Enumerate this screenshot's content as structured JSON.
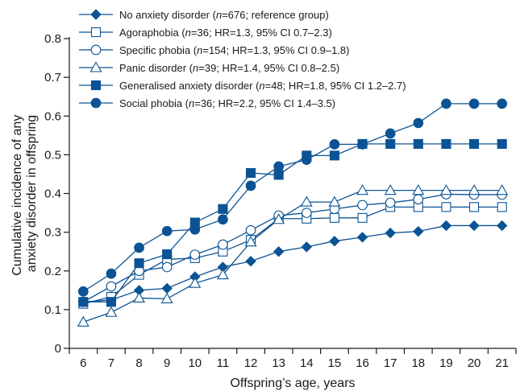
{
  "chart_data": {
    "type": "line",
    "xlabel": "Offspring’s age, years",
    "ylabel_lines": [
      "Cumulative incidence of any",
      "anxiety disorder in offspring"
    ],
    "categories": [
      6,
      7,
      8,
      9,
      10,
      11,
      12,
      13,
      14,
      15,
      16,
      17,
      18,
      19,
      20,
      21
    ],
    "ylim": [
      0,
      0.8
    ],
    "yticks": [
      "0",
      "0.1",
      "0.2",
      "0.3",
      "0.4",
      "0.5",
      "0.6",
      "0.7",
      "0.8"
    ],
    "grid": false,
    "legend_position": "top-left",
    "color": "#0b5394",
    "series": [
      {
        "marker": "filled-diamond",
        "legend": {
          "pre": "No anxiety disorder (",
          "n": "n",
          "post": "=676; reference group)"
        },
        "values": [
          0.12,
          0.125,
          0.15,
          0.155,
          0.185,
          0.21,
          0.225,
          0.25,
          0.262,
          0.277,
          0.287,
          0.298,
          0.302,
          0.317,
          0.317,
          0.317
        ]
      },
      {
        "marker": "open-square",
        "legend": {
          "pre": "Agoraphobia (",
          "n": "n",
          "post": "=36; HR=1.3, 95% CI 0.7–2.3)"
        },
        "values": [
          0.115,
          0.133,
          0.19,
          0.23,
          0.233,
          0.25,
          0.28,
          0.335,
          0.335,
          0.337,
          0.337,
          0.365,
          0.365,
          0.365,
          0.365,
          0.365
        ]
      },
      {
        "marker": "open-circle",
        "legend": {
          "pre": "Specific phobia (",
          "n": "n",
          "post": "=154; HR=1.3, 95% CI 0.9–1.8)"
        },
        "values": [
          0.12,
          0.16,
          0.2,
          0.21,
          0.242,
          0.268,
          0.305,
          0.343,
          0.35,
          0.36,
          0.37,
          0.376,
          0.385,
          0.398,
          0.397,
          0.397
        ]
      },
      {
        "marker": "open-triangle",
        "legend": {
          "pre": "Panic disorder (",
          "n": "n",
          "post": "=39; HR=1.4, 95% CI 0.8–2.5)"
        },
        "values": [
          0.068,
          0.093,
          0.13,
          0.128,
          0.168,
          0.19,
          0.275,
          0.333,
          0.378,
          0.378,
          0.408,
          0.408,
          0.408,
          0.408,
          0.408,
          0.408
        ]
      },
      {
        "marker": "filled-square",
        "legend": {
          "pre": "Generalised anxiety disorder (",
          "n": "n",
          "post": "=48; HR=1.8, 95% CI 1.2–2.7)"
        },
        "values": [
          0.12,
          0.12,
          0.22,
          0.243,
          0.325,
          0.36,
          0.453,
          0.448,
          0.498,
          0.498,
          0.528,
          0.528,
          0.528,
          0.528,
          0.528,
          0.528
        ]
      },
      {
        "marker": "filled-circle",
        "legend": {
          "pre": "Social phobia (",
          "n": "n",
          "post": "=36; HR=2.2, 95% CI 1.4–3.5)"
        },
        "values": [
          0.147,
          0.193,
          0.26,
          0.303,
          0.307,
          0.333,
          0.42,
          0.47,
          0.487,
          0.527,
          0.527,
          0.555,
          0.582,
          0.632,
          0.632,
          0.632
        ]
      }
    ]
  }
}
